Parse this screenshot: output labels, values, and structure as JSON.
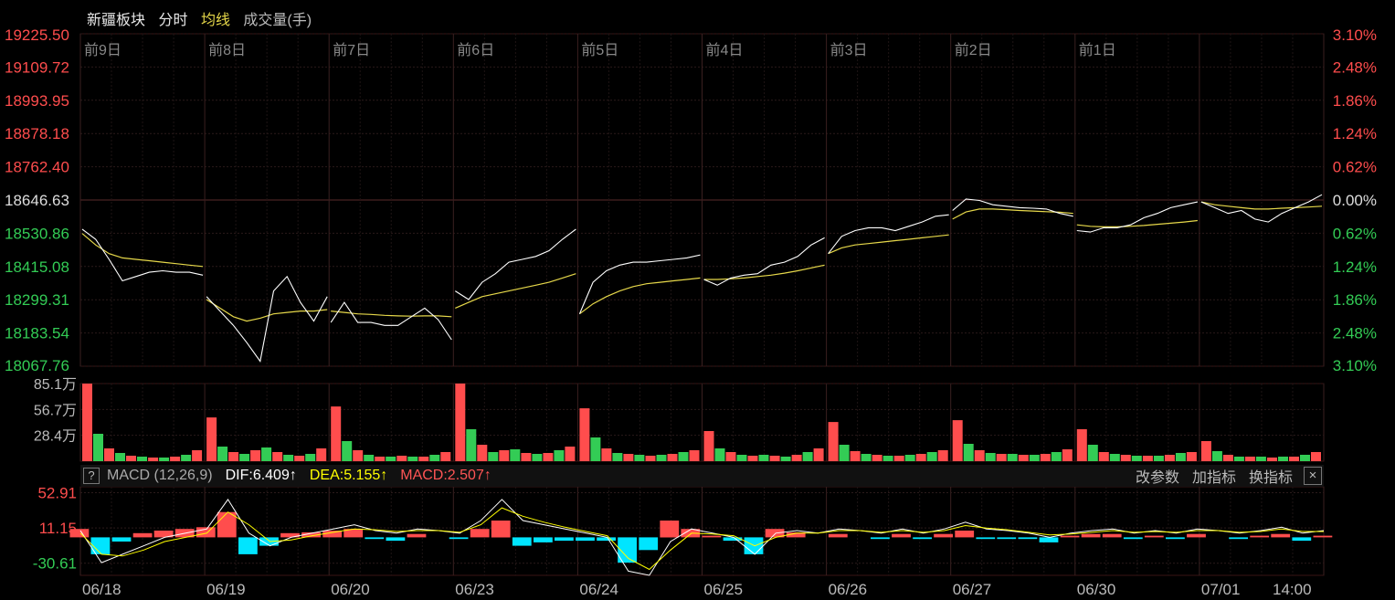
{
  "header": {
    "title": "新疆板块",
    "mode": "分时",
    "avg_label": "均线",
    "volume_label": "成交量(手)"
  },
  "colors": {
    "up": "#ff4d4d",
    "down": "#33cc55",
    "price_line": "#ffffff",
    "avg_line": "#e6d84a",
    "dea": "#ffff00",
    "macd_neg": "#00e5ff"
  },
  "macd_header": {
    "help": "?",
    "name": "MACD (12,26,9)",
    "dif": "DIF:6.409↑",
    "dea": "DEA:5.155↑",
    "macd": "MACD:2.507↑",
    "tools": [
      "改参数",
      "加指标",
      "换指标"
    ],
    "close": "×"
  },
  "chart_data": {
    "type": "line",
    "day_labels": [
      "前9日",
      "前8日",
      "前7日",
      "前6日",
      "前5日",
      "前4日",
      "前3日",
      "前2日",
      "前1日"
    ],
    "dates": [
      "06/18",
      "06/19",
      "06/20",
      "06/23",
      "06/24",
      "06/25",
      "06/26",
      "06/27",
      "06/30",
      "07/01",
      "14:00"
    ],
    "price_axis": {
      "ticks": [
        "19225.50",
        "19109.72",
        "18993.95",
        "18878.18",
        "18762.40",
        "18646.63",
        "18530.86",
        "18415.08",
        "18299.31",
        "18183.54",
        "18067.76"
      ],
      "ylim": [
        18067.76,
        19225.5
      ],
      "base": 18646.63
    },
    "pct_axis": {
      "ticks": [
        "3.10%",
        "2.48%",
        "1.86%",
        "1.24%",
        "0.62%",
        "0.00%",
        "0.62%",
        "1.24%",
        "1.86%",
        "2.48%",
        "3.10%"
      ]
    },
    "volume_axis": {
      "ticks": [
        "85.1万",
        "56.7万",
        "28.4万"
      ],
      "ylim": [
        0,
        85.1
      ]
    },
    "macd_axis": {
      "ticks": [
        "52.91",
        "11.15",
        "-30.61"
      ],
      "ylim": [
        -45,
        60
      ]
    },
    "days": [
      {
        "price": [
          18545,
          18510,
          18440,
          18365,
          18380,
          18395,
          18400,
          18395,
          18395,
          18385
        ],
        "avg": [
          18530,
          18490,
          18460,
          18445,
          18440,
          18435,
          18430,
          18425,
          18420,
          18415
        ]
      },
      {
        "price": [
          18310,
          18260,
          18210,
          18150,
          18085,
          18330,
          18380,
          18290,
          18225,
          18310
        ],
        "avg": [
          18300,
          18270,
          18240,
          18225,
          18235,
          18250,
          18255,
          18260,
          18260,
          18265
        ]
      },
      {
        "price": [
          18220,
          18290,
          18220,
          18220,
          18210,
          18210,
          18240,
          18270,
          18230,
          18160
        ],
        "avg": [
          18260,
          18255,
          18250,
          18248,
          18245,
          18243,
          18242,
          18243,
          18243,
          18240
        ]
      },
      {
        "price": [
          18330,
          18300,
          18360,
          18390,
          18430,
          18440,
          18450,
          18470,
          18510,
          18545
        ],
        "avg": [
          18270,
          18290,
          18310,
          18320,
          18330,
          18340,
          18350,
          18360,
          18375,
          18390
        ]
      },
      {
        "price": [
          18250,
          18360,
          18400,
          18420,
          18430,
          18430,
          18435,
          18440,
          18445,
          18455
        ],
        "avg": [
          18250,
          18285,
          18310,
          18330,
          18345,
          18355,
          18360,
          18365,
          18370,
          18375
        ]
      },
      {
        "price": [
          18370,
          18350,
          18375,
          18385,
          18390,
          18420,
          18430,
          18450,
          18490,
          18515
        ],
        "avg": [
          18370,
          18370,
          18372,
          18375,
          18380,
          18385,
          18392,
          18400,
          18410,
          18420
        ]
      },
      {
        "price": [
          18460,
          18520,
          18540,
          18550,
          18550,
          18540,
          18555,
          18570,
          18590,
          18595
        ],
        "avg": [
          18460,
          18480,
          18490,
          18495,
          18500,
          18505,
          18510,
          18515,
          18520,
          18525
        ]
      },
      {
        "price": [
          18610,
          18650,
          18645,
          18630,
          18625,
          18620,
          18618,
          18615,
          18600,
          18590
        ],
        "avg": [
          18580,
          18605,
          18615,
          18615,
          18613,
          18610,
          18608,
          18606,
          18604,
          18600
        ]
      },
      {
        "price": [
          18540,
          18535,
          18550,
          18550,
          18560,
          18585,
          18600,
          18620,
          18630,
          18640
        ],
        "avg": [
          18560,
          18555,
          18553,
          18553,
          18555,
          18558,
          18562,
          18566,
          18570,
          18575
        ]
      },
      {
        "price": [
          18640,
          18620,
          18600,
          18610,
          18580,
          18570,
          18600,
          18620,
          18640,
          18665
        ],
        "avg": [
          18640,
          18630,
          18625,
          18620,
          18615,
          18615,
          18618,
          18620,
          18622,
          18625
        ]
      }
    ],
    "volume": [
      [
        85,
        30,
        14,
        9,
        6,
        5,
        4,
        4,
        5,
        7,
        12
      ],
      [
        48,
        16,
        10,
        8,
        12,
        15,
        10,
        7,
        6,
        8,
        14
      ],
      [
        60,
        22,
        12,
        7,
        5,
        5,
        6,
        5,
        5,
        7,
        10
      ],
      [
        96,
        35,
        18,
        10,
        12,
        13,
        9,
        8,
        9,
        12,
        16
      ],
      [
        58,
        26,
        14,
        9,
        8,
        7,
        6,
        7,
        8,
        10,
        12
      ],
      [
        33,
        14,
        10,
        7,
        6,
        7,
        6,
        5,
        7,
        10,
        14
      ],
      [
        43,
        18,
        11,
        8,
        7,
        6,
        6,
        7,
        8,
        10,
        12
      ],
      [
        45,
        19,
        12,
        9,
        8,
        8,
        7,
        7,
        8,
        10,
        13
      ],
      [
        35,
        18,
        10,
        8,
        7,
        6,
        6,
        6,
        7,
        9,
        10
      ],
      [
        22,
        11,
        7,
        5,
        5,
        5,
        4,
        5,
        5,
        7,
        10
      ]
    ],
    "macd": {
      "dif": [
        8,
        -30,
        -20,
        -10,
        0,
        5,
        10,
        45,
        5,
        -10,
        0,
        5,
        10,
        15,
        8,
        5,
        10,
        8,
        5,
        20,
        45,
        20,
        15,
        10,
        5,
        0,
        -40,
        -45,
        -5,
        10,
        5,
        0,
        -20,
        5,
        8,
        5,
        10,
        8,
        5,
        10,
        5,
        10,
        18,
        10,
        8,
        5,
        0,
        5,
        8,
        10,
        5,
        8,
        5,
        10,
        8,
        5,
        8,
        12,
        5,
        8
      ],
      "dea": [
        5,
        -20,
        -22,
        -15,
        -5,
        0,
        5,
        30,
        15,
        -5,
        -3,
        2,
        6,
        10,
        9,
        7,
        8,
        8,
        6,
        15,
        35,
        25,
        18,
        12,
        7,
        2,
        -25,
        -38,
        -15,
        5,
        4,
        2,
        -10,
        0,
        5,
        5,
        8,
        8,
        6,
        8,
        6,
        8,
        14,
        11,
        9,
        6,
        3,
        4,
        6,
        8,
        6,
        7,
        6,
        8,
        8,
        6,
        7,
        10,
        7,
        7
      ],
      "hist": [
        10,
        -20,
        -5,
        5,
        8,
        10,
        12,
        30,
        -20,
        -10,
        5,
        6,
        8,
        10,
        -2,
        -4,
        4,
        0,
        -2,
        10,
        20,
        -10,
        -6,
        -4,
        -4,
        -4,
        -30,
        -15,
        20,
        10,
        2,
        -4,
        -20,
        10,
        6,
        0,
        4,
        0,
        -2,
        4,
        -2,
        4,
        8,
        -2,
        -2,
        -2,
        -6,
        2,
        4,
        4,
        -2,
        2,
        -2,
        4,
        0,
        -2,
        2,
        4,
        -4,
        2
      ]
    }
  }
}
